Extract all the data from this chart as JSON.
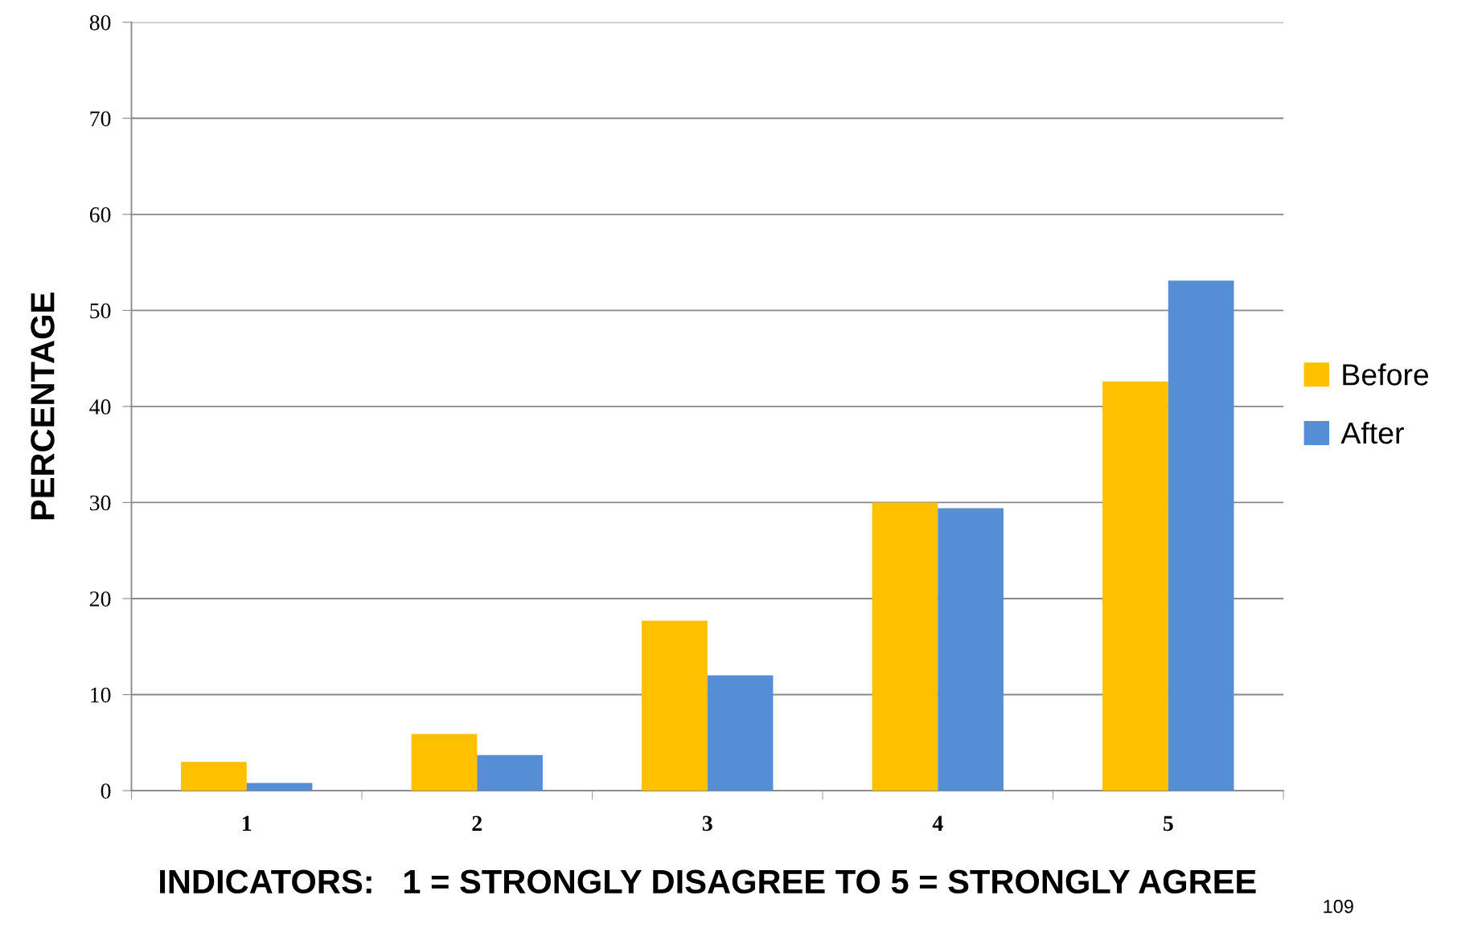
{
  "chart_data": {
    "type": "bar",
    "categories": [
      "1",
      "2",
      "3",
      "4",
      "5"
    ],
    "series": [
      {
        "name": "Before",
        "color": "#ffc000",
        "values": [
          3,
          5.9,
          17.7,
          30.0,
          42.6
        ]
      },
      {
        "name": "After",
        "color": "#558ed5",
        "values": [
          0.8,
          3.7,
          12.0,
          29.4,
          53.1
        ]
      }
    ],
    "xlabel": "INDICATORS:   1 = STRONGLY DISAGREE TO 5 = STRONGLY AGREE",
    "ylabel": "PERCENTAGE",
    "ylim": [
      0,
      80
    ],
    "yticks": [
      0,
      10,
      20,
      30,
      40,
      50,
      60,
      70,
      80
    ],
    "grid": "y",
    "legend": "right",
    "annotations": [
      "109"
    ]
  }
}
